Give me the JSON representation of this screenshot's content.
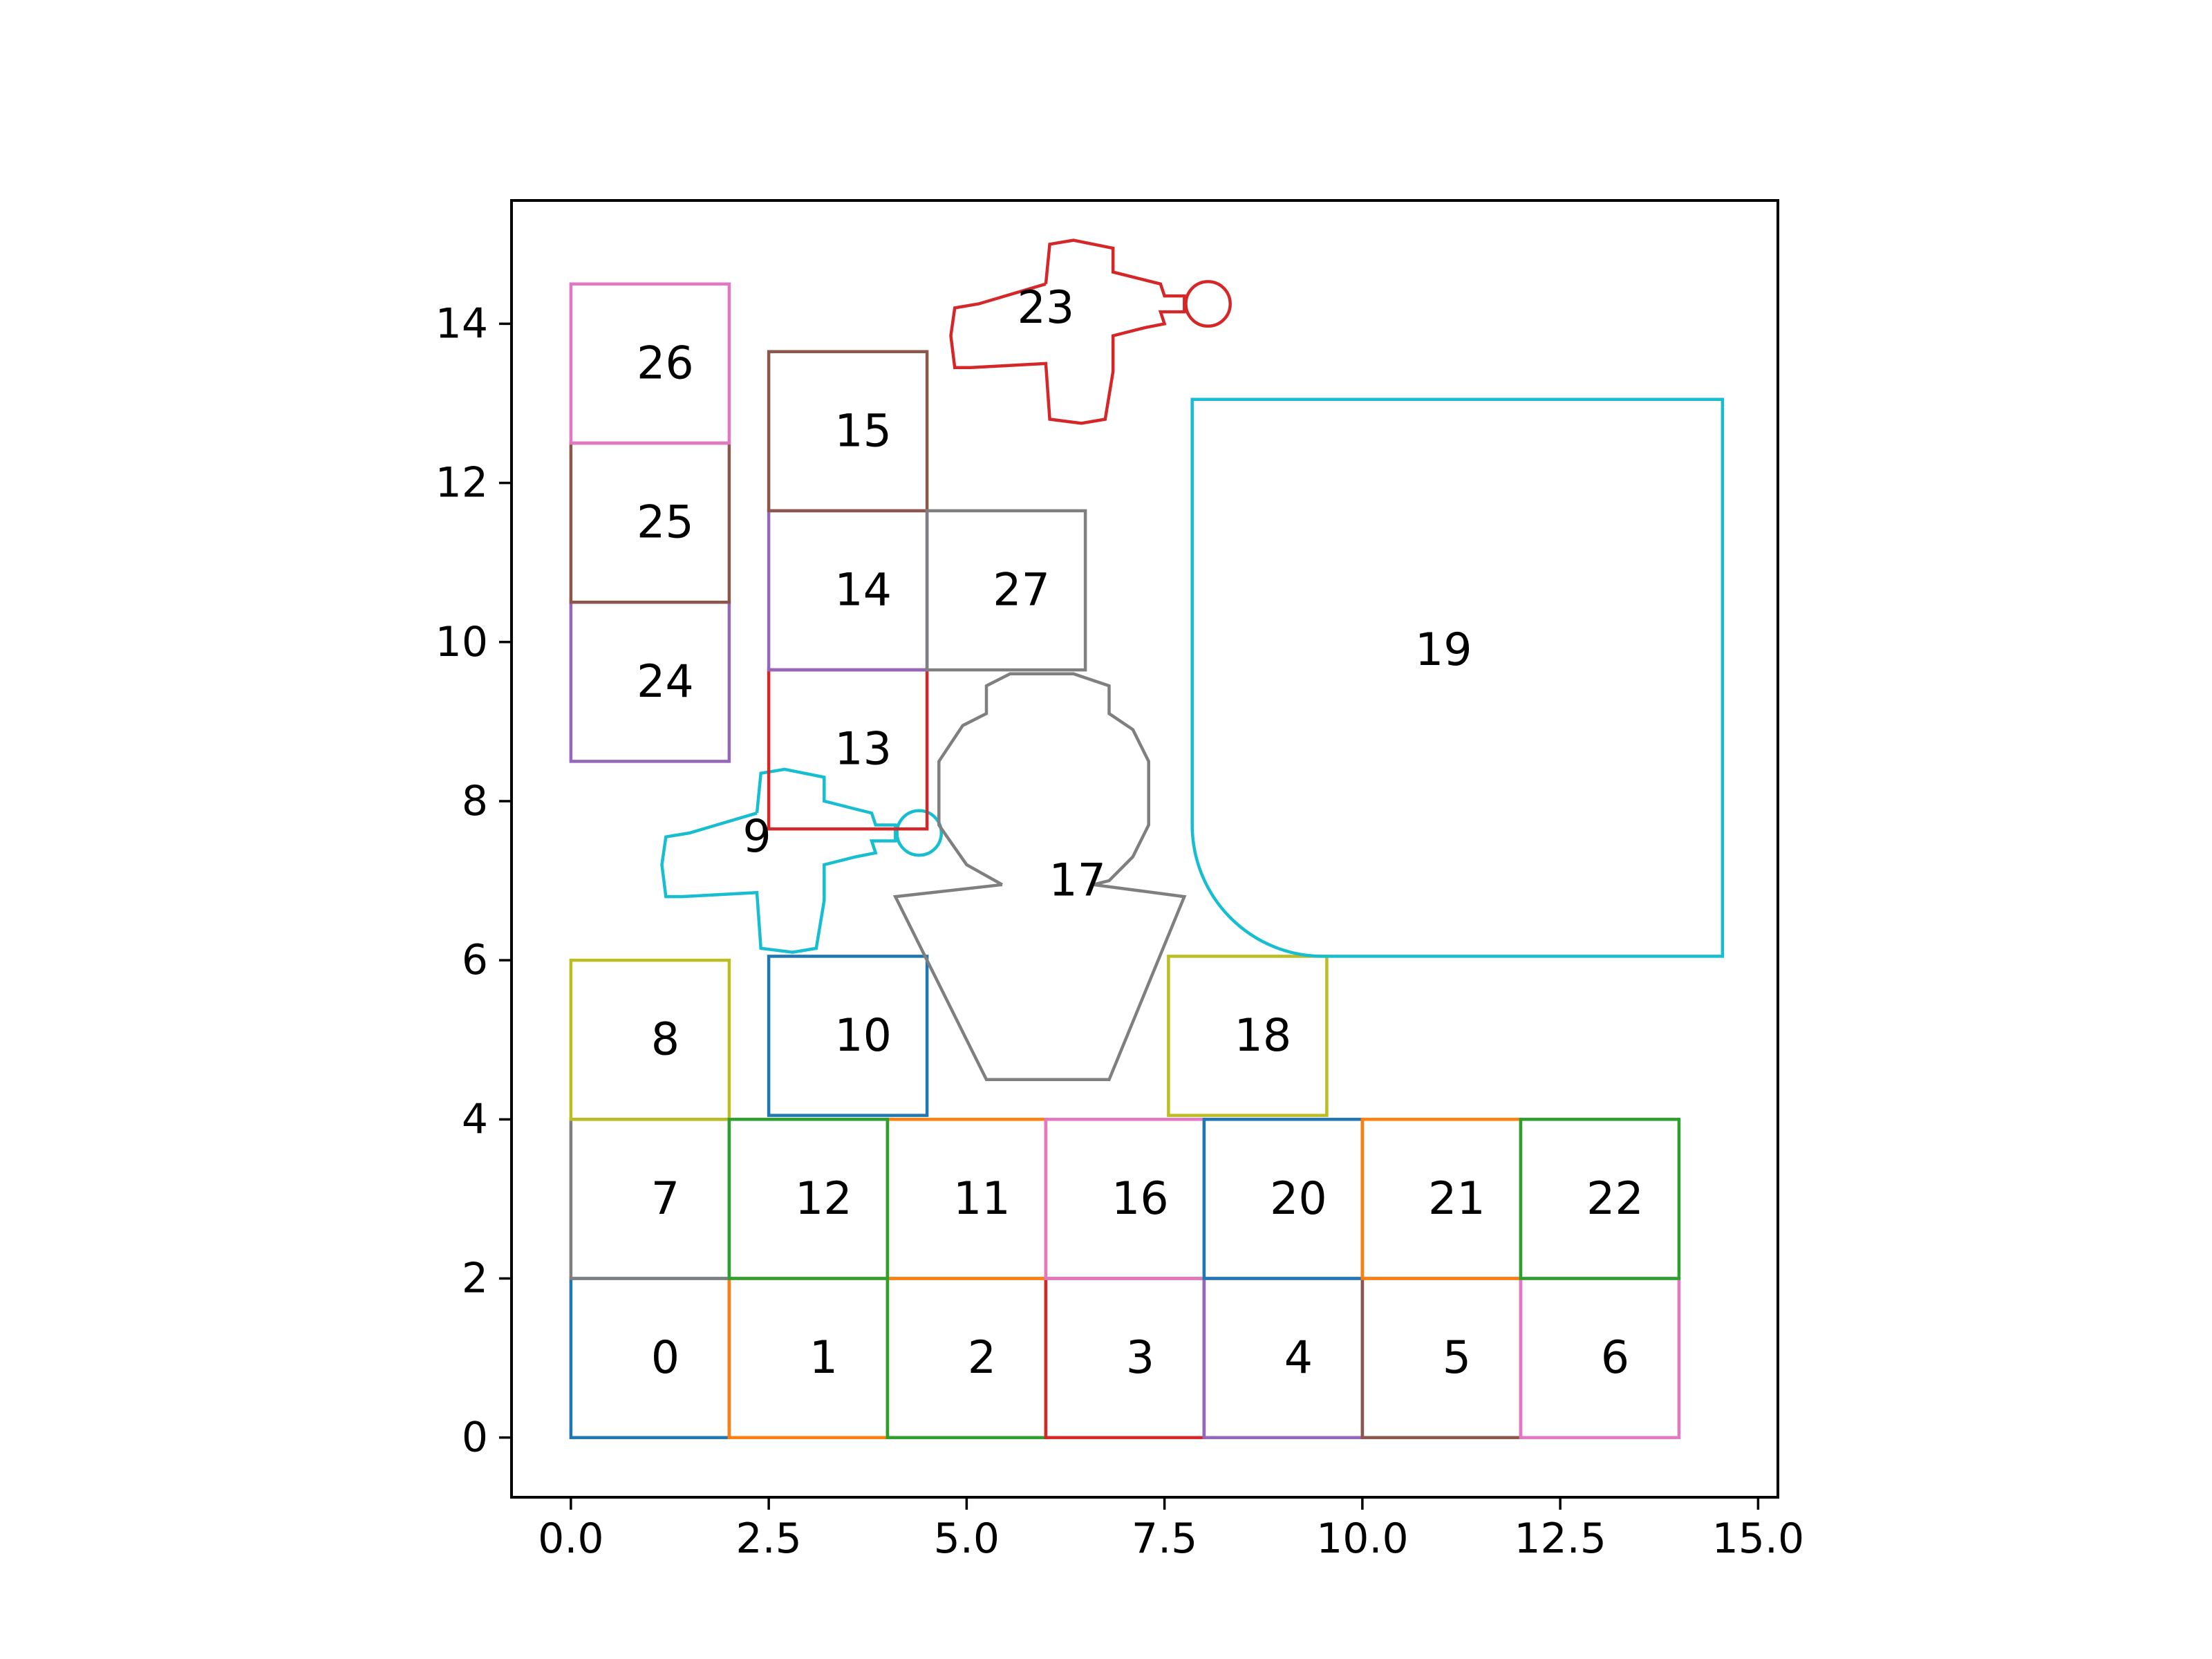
{
  "chart_data": {
    "type": "diagram",
    "xlim": [
      -0.75,
      15.25
    ],
    "ylim": [
      -0.75,
      15.55
    ],
    "x_ticks": [
      {
        "value": 0,
        "label": "0.0"
      },
      {
        "value": 2.5,
        "label": "2.5"
      },
      {
        "value": 5,
        "label": "5.0"
      },
      {
        "value": 7.5,
        "label": "7.5"
      },
      {
        "value": 10,
        "label": "10.0"
      },
      {
        "value": 12.5,
        "label": "12.5"
      },
      {
        "value": 15,
        "label": "15.0"
      }
    ],
    "y_ticks": [
      {
        "value": 0,
        "label": "0"
      },
      {
        "value": 2,
        "label": "2"
      },
      {
        "value": 4,
        "label": "4"
      },
      {
        "value": 6,
        "label": "6"
      },
      {
        "value": 8,
        "label": "8"
      },
      {
        "value": 10,
        "label": "10"
      },
      {
        "value": 12,
        "label": "12"
      },
      {
        "value": 14,
        "label": "14"
      }
    ],
    "grid": false,
    "shapes": [
      {
        "id": "0",
        "kind": "rect",
        "x": 0,
        "y": 0,
        "w": 2,
        "h": 2,
        "color": "#1f77b4"
      },
      {
        "id": "1",
        "kind": "rect",
        "x": 2,
        "y": 0,
        "w": 2,
        "h": 2,
        "color": "#ff7f0e"
      },
      {
        "id": "2",
        "kind": "rect",
        "x": 4,
        "y": 0,
        "w": 2,
        "h": 2,
        "color": "#2ca02c"
      },
      {
        "id": "3",
        "kind": "rect",
        "x": 6,
        "y": 0,
        "w": 2,
        "h": 2,
        "color": "#d62728"
      },
      {
        "id": "4",
        "kind": "rect",
        "x": 8,
        "y": 0,
        "w": 2,
        "h": 2,
        "color": "#9467bd"
      },
      {
        "id": "5",
        "kind": "rect",
        "x": 10,
        "y": 0,
        "w": 2,
        "h": 2,
        "color": "#8c564b"
      },
      {
        "id": "6",
        "kind": "rect",
        "x": 12,
        "y": 0,
        "w": 2,
        "h": 2,
        "color": "#e377c2"
      },
      {
        "id": "7",
        "kind": "rect",
        "x": 0,
        "y": 2,
        "w": 2,
        "h": 2,
        "color": "#7f7f7f"
      },
      {
        "id": "8",
        "kind": "rect",
        "x": 0,
        "y": 4,
        "w": 2,
        "h": 2,
        "color": "#bcbd22"
      },
      {
        "id": "9",
        "kind": "plane",
        "cx": 2.25,
        "cy": 7.3,
        "color": "#17becf"
      },
      {
        "id": "10",
        "kind": "rect",
        "x": 2.5,
        "y": 4.05,
        "w": 2,
        "h": 2,
        "color": "#1f77b4"
      },
      {
        "id": "11",
        "kind": "rect",
        "x": 4,
        "y": 2,
        "w": 2,
        "h": 2,
        "color": "#ff7f0e"
      },
      {
        "id": "12",
        "kind": "rect",
        "x": 2,
        "y": 2,
        "w": 2,
        "h": 2,
        "color": "#2ca02c"
      },
      {
        "id": "13",
        "kind": "rect",
        "x": 2.5,
        "y": 7.65,
        "w": 2,
        "h": 2,
        "color": "#d62728"
      },
      {
        "id": "14",
        "kind": "rect",
        "x": 2.5,
        "y": 9.65,
        "w": 2,
        "h": 2,
        "color": "#9467bd"
      },
      {
        "id": "15",
        "kind": "rect",
        "x": 2.5,
        "y": 11.65,
        "w": 2,
        "h": 2,
        "color": "#8c564b"
      },
      {
        "id": "16",
        "kind": "rect",
        "x": 6,
        "y": 2,
        "w": 2,
        "h": 2,
        "color": "#e377c2"
      },
      {
        "id": "17",
        "kind": "bust",
        "color": "#7f7f7f"
      },
      {
        "id": "18",
        "kind": "rect",
        "x": 7.55,
        "y": 4.05,
        "w": 2,
        "h": 2,
        "color": "#bcbd22"
      },
      {
        "id": "19",
        "kind": "rounded",
        "x": 7.85,
        "y": 6.05,
        "w": 6.7,
        "h": 7,
        "r": 1.65,
        "color": "#17becf"
      },
      {
        "id": "20",
        "kind": "rect",
        "x": 8,
        "y": 2,
        "w": 2,
        "h": 2,
        "color": "#1f77b4"
      },
      {
        "id": "21",
        "kind": "rect",
        "x": 10,
        "y": 2,
        "w": 2,
        "h": 2,
        "color": "#ff7f0e"
      },
      {
        "id": "22",
        "kind": "rect",
        "x": 12,
        "y": 2,
        "w": 2,
        "h": 2,
        "color": "#2ca02c"
      },
      {
        "id": "23",
        "kind": "plane",
        "cx": 5.9,
        "cy": 13.95,
        "color": "#d62728"
      },
      {
        "id": "24",
        "kind": "rect",
        "x": 0,
        "y": 8.5,
        "w": 2,
        "h": 2,
        "color": "#9467bd"
      },
      {
        "id": "25",
        "kind": "rect",
        "x": 0,
        "y": 10.5,
        "w": 2,
        "h": 2,
        "color": "#8c564b"
      },
      {
        "id": "26",
        "kind": "rect",
        "x": 0,
        "y": 12.5,
        "w": 2,
        "h": 2,
        "color": "#e377c2"
      },
      {
        "id": "27",
        "kind": "rect",
        "x": 4.5,
        "y": 9.65,
        "w": 2,
        "h": 2,
        "color": "#7f7f7f"
      }
    ]
  }
}
